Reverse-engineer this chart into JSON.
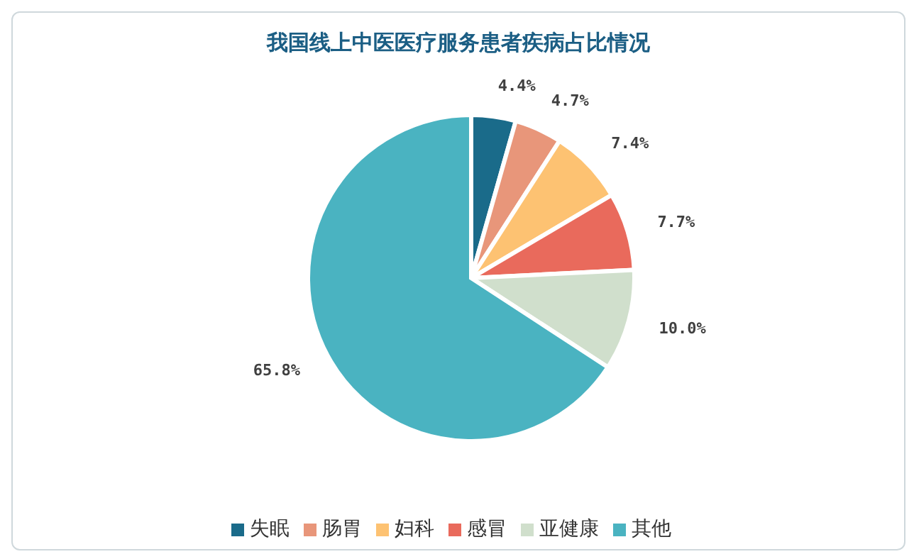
{
  "chart_data": {
    "type": "pie",
    "title": "我国线上中医医疗服务患者疾病占比情况",
    "categories": [
      "失眠",
      "肠胃",
      "妇科",
      "感冒",
      "亚健康",
      "其他"
    ],
    "values": [
      4.4,
      4.7,
      7.4,
      7.7,
      10.0,
      65.8
    ],
    "colors": [
      "#1a6b8a",
      "#e8967a",
      "#fdc272",
      "#e96a5c",
      "#d0dfcc",
      "#4ab3c1"
    ],
    "value_labels": [
      "4.4%",
      "4.7%",
      "7.4%",
      "7.7%",
      "10.0%",
      "65.8%"
    ],
    "legend": "bottom"
  }
}
